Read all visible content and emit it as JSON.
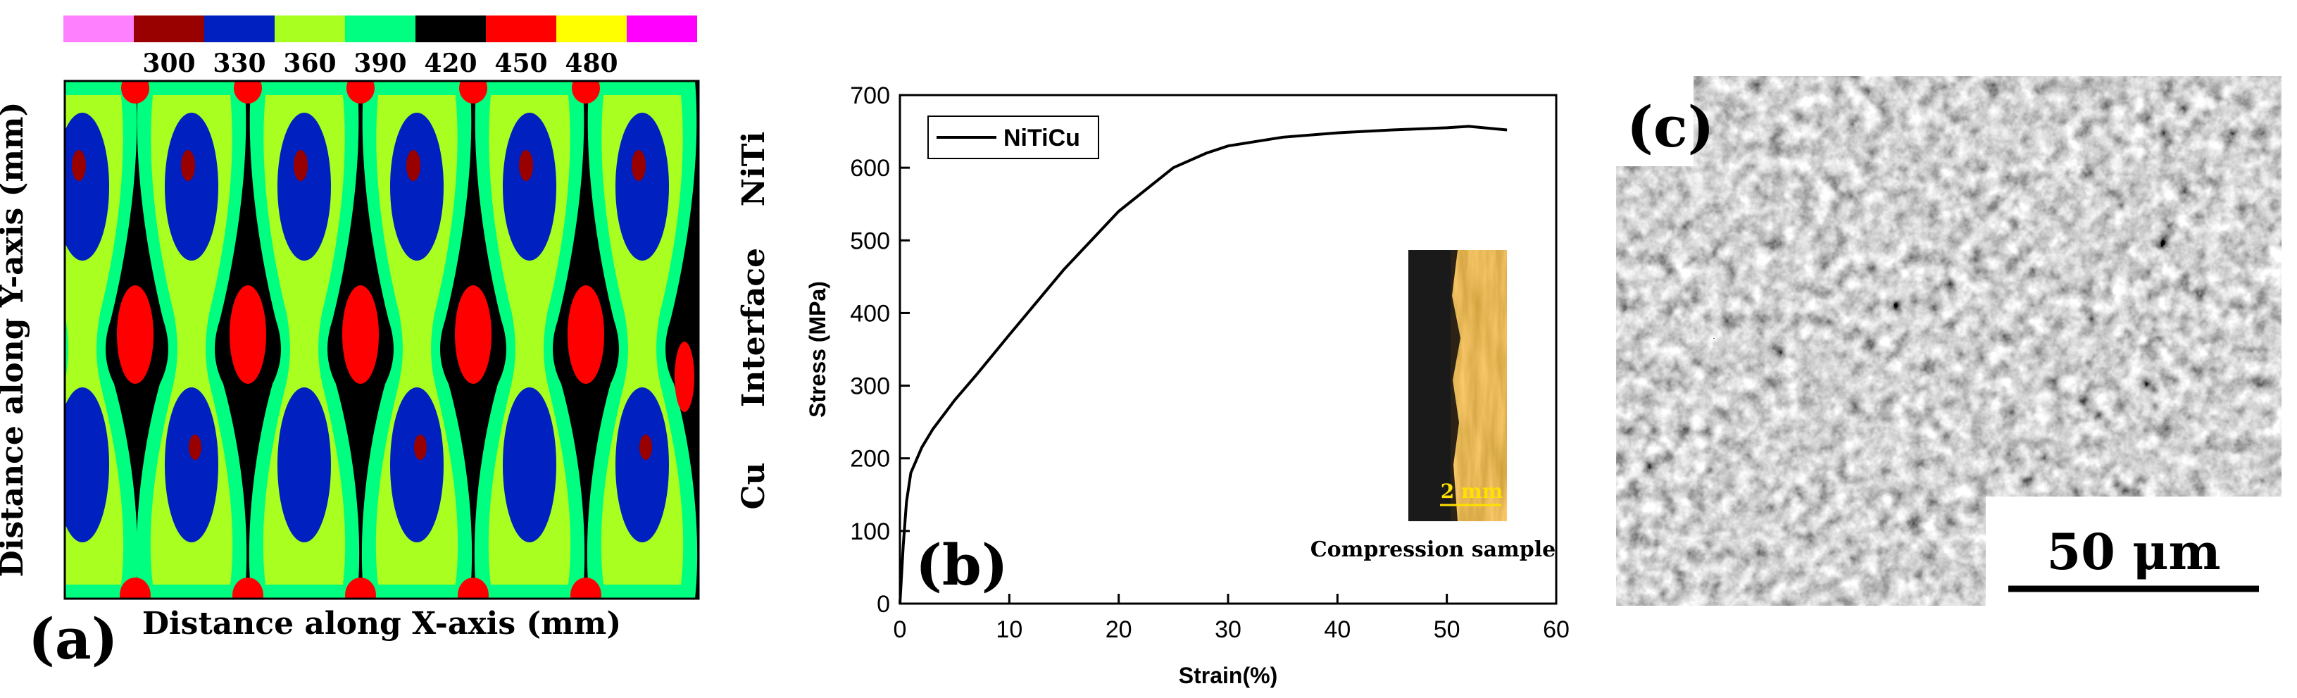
{
  "panel_a": {
    "label": "(a)",
    "xlabel": "Distance along X-axis (mm)",
    "ylabel": "Distance along Y-axis (mm)",
    "colorbar_labels": [
      "300",
      "330",
      "360",
      "390",
      "420",
      "450",
      "480"
    ],
    "colors": {
      "c1": "#FF80FF",
      "c2": "#990000",
      "c3": "#0020C0",
      "c4": "#A8FF20",
      "c5": "#00FF80",
      "c6": "#000000",
      "c7": "#FF0000",
      "c8": "#FFFF00",
      "c9": "#FF00FF"
    }
  },
  "side_labels": {
    "top": "NiTi",
    "middle": "Interface",
    "bottom": "Cu"
  },
  "chart_data": {
    "type": "line",
    "panel_label": "(b)",
    "xlabel": "Strain(%)",
    "ylabel": "Stress (MPa)",
    "xlim": [
      0,
      60
    ],
    "ylim": [
      0,
      700
    ],
    "x_ticks": [
      "0",
      "10",
      "20",
      "30",
      "40",
      "50",
      "60"
    ],
    "y_ticks": [
      "0",
      "100",
      "200",
      "300",
      "400",
      "500",
      "600",
      "700"
    ],
    "series": [
      {
        "name": "NiTiCu",
        "x": [
          0,
          0.3,
          0.6,
          1,
          2,
          3,
          5,
          7,
          10,
          15,
          20,
          25,
          28,
          30,
          35,
          40,
          45,
          50,
          52,
          55.5
        ],
        "y": [
          0,
          80,
          140,
          180,
          215,
          240,
          280,
          315,
          370,
          460,
          540,
          600,
          620,
          630,
          642,
          648,
          652,
          655,
          657,
          652
        ]
      }
    ],
    "legend": "top-left",
    "inset": {
      "scale_label": "2 mm",
      "caption": "Compression sample"
    }
  },
  "panel_c": {
    "label": "(c)",
    "scale_bar": "50 μm"
  }
}
